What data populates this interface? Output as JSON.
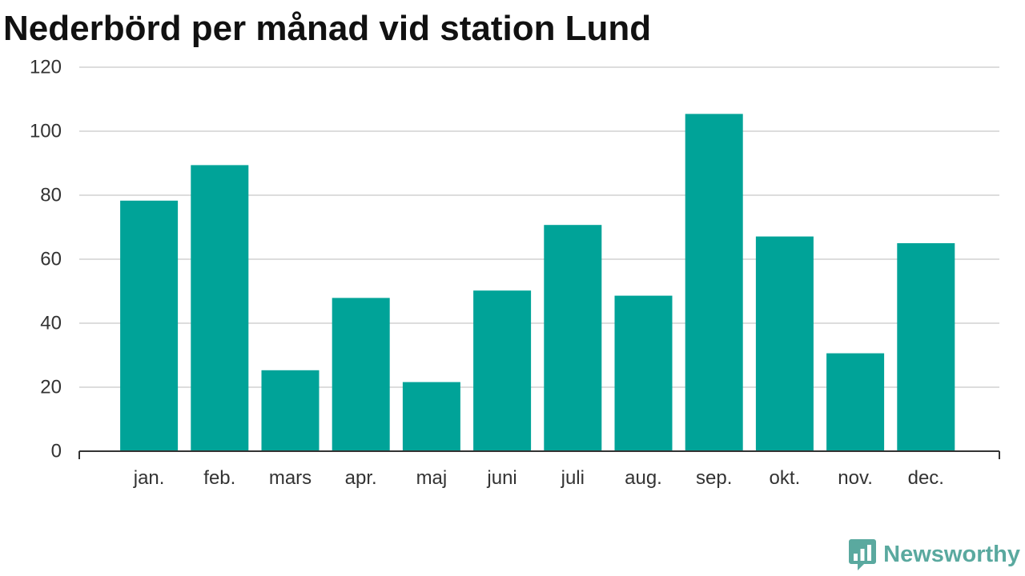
{
  "chart_data": {
    "type": "bar",
    "title": "Nederbörd per månad vid station Lund",
    "categories": [
      "jan.",
      "feb.",
      "mars",
      "apr.",
      "maj",
      "juni",
      "juli",
      "aug.",
      "sep.",
      "okt.",
      "nov.",
      "dec."
    ],
    "values": [
      78.3,
      89.4,
      25.3,
      47.9,
      21.6,
      50.2,
      70.7,
      48.6,
      105.4,
      67.1,
      30.6,
      65.0
    ],
    "xlabel": "",
    "ylabel": "",
    "ylim": [
      0,
      120
    ],
    "yticks": [
      0,
      20,
      40,
      60,
      80,
      100,
      120
    ],
    "grid": true,
    "legend": "none",
    "bar_color": "#00a398"
  },
  "branding": {
    "name": "Newsworthy",
    "logo_icon": "newsworthy-chart-bubble-icon",
    "color": "#5aa99f"
  },
  "colors": {
    "gridline": "#dddddd",
    "axis": "#333333",
    "text": "#333333",
    "title": "#111111"
  }
}
